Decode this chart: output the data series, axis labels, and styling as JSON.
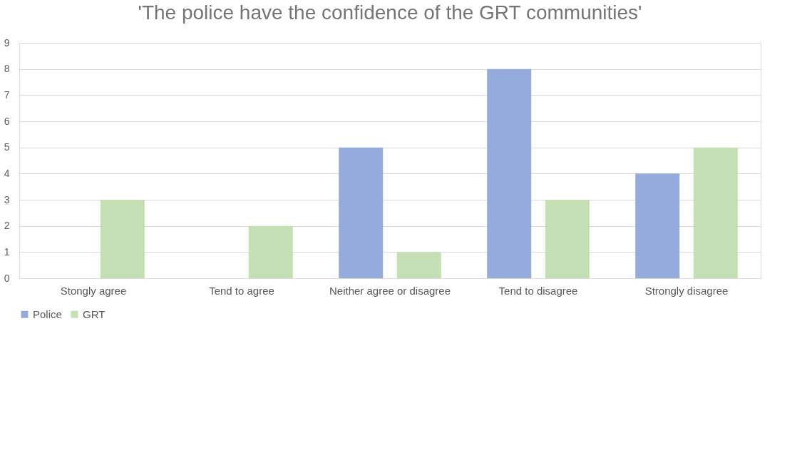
{
  "chart_data": {
    "type": "bar",
    "title": "'The police have the confidence of the GRT communities'",
    "categories": [
      "Stongly agree",
      "Tend to agree",
      "Neither agree or disagree",
      "Tend to disagree",
      "Strongly disagree"
    ],
    "series": [
      {
        "name": "Police",
        "color": "#95abdc",
        "values": [
          0,
          0,
          5,
          8,
          4
        ]
      },
      {
        "name": "GRT",
        "color": "#c5e0b4",
        "values": [
          3,
          2,
          1,
          3,
          5
        ]
      }
    ],
    "ylim": [
      0,
      9
    ],
    "yticks": [
      0,
      1,
      2,
      3,
      4,
      5,
      6,
      7,
      8,
      9
    ],
    "grid": "y",
    "legend": "bottom"
  }
}
